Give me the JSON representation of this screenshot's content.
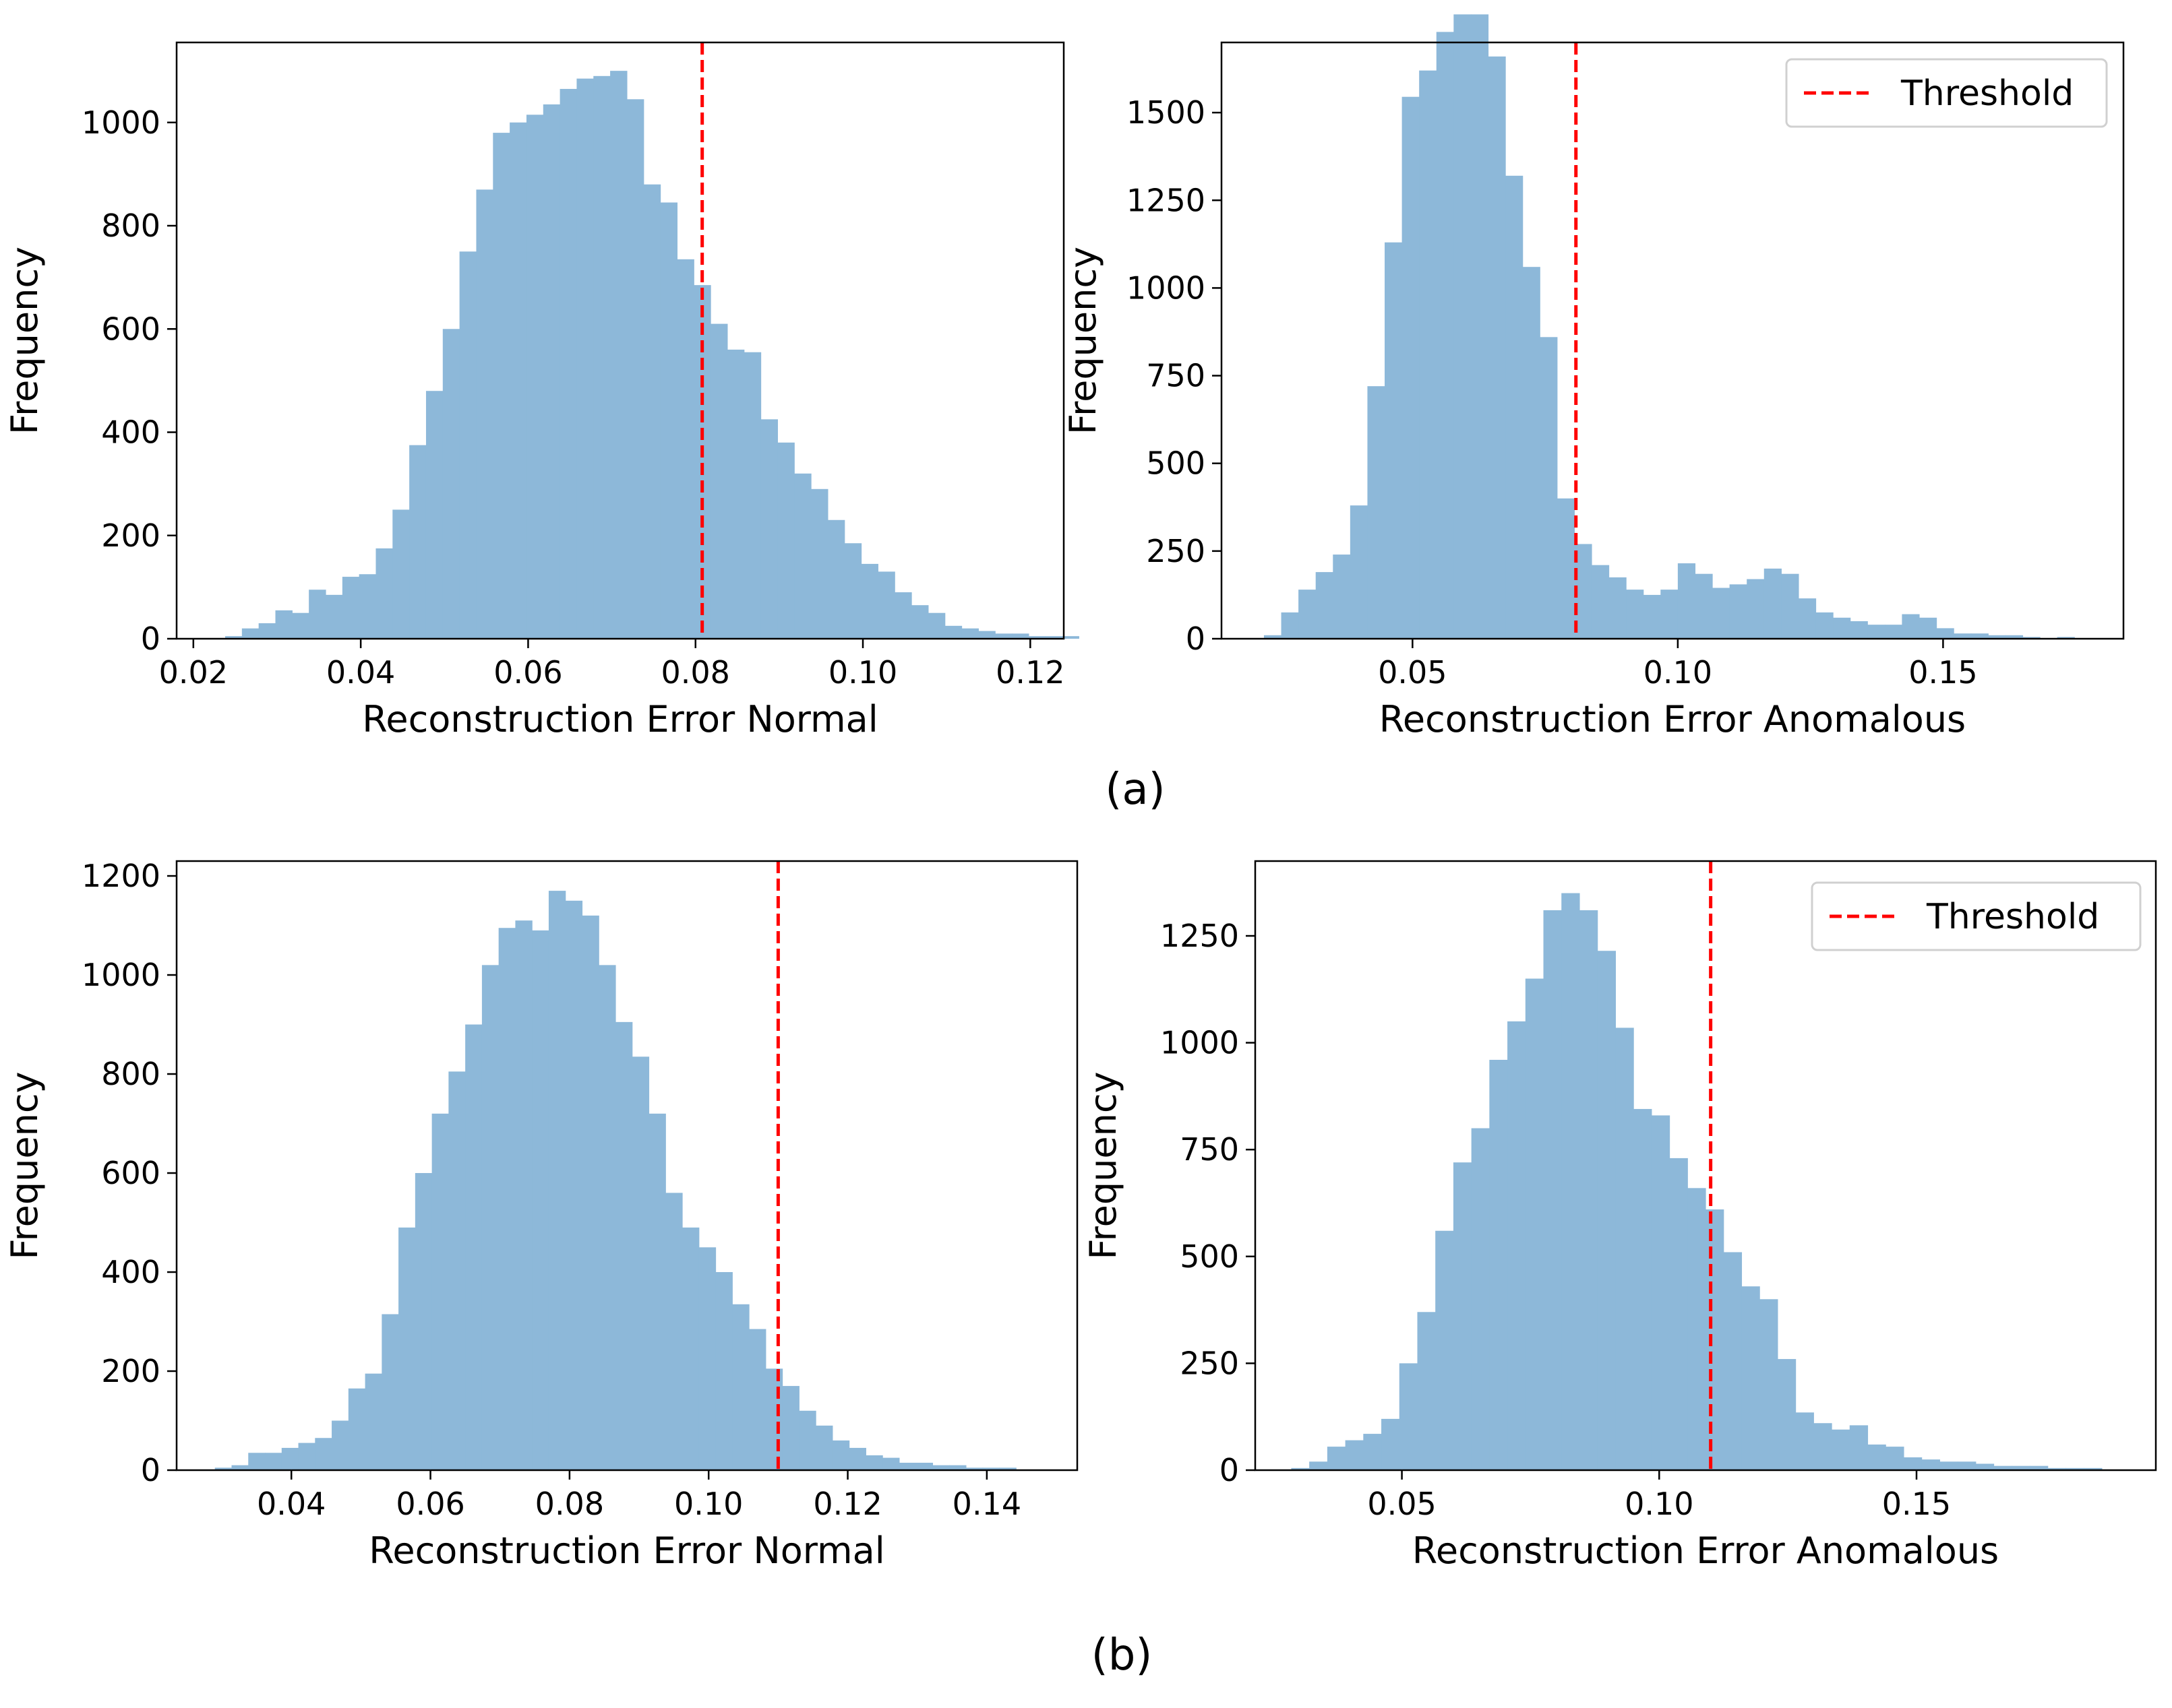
{
  "colors": {
    "bar": "#8db8d9",
    "threshold": "#ff0000",
    "axis": "#000000"
  },
  "captions": {
    "a": "(a)",
    "b": "(b)"
  },
  "chart_data": [
    {
      "type": "bar",
      "panel": "a-left",
      "xlabel": "Reconstruction Error Normal",
      "ylabel": "Frequency",
      "xlim": [
        0.018,
        0.124
      ],
      "ylim": [
        0,
        1155
      ],
      "xticks": [
        0.02,
        0.04,
        0.06,
        0.08,
        0.1,
        0.12
      ],
      "xtick_labels": [
        "0.02",
        "0.04",
        "0.06",
        "0.08",
        "0.10",
        "0.12"
      ],
      "yticks": [
        0,
        200,
        400,
        600,
        800,
        1000
      ],
      "ytick_labels": [
        "0",
        "200",
        "400",
        "600",
        "800",
        "1000"
      ],
      "bin_start": 0.0238,
      "bin_width": 0.002,
      "values": [
        5,
        20,
        30,
        55,
        50,
        95,
        85,
        120,
        125,
        175,
        250,
        375,
        480,
        600,
        750,
        870,
        980,
        1000,
        1015,
        1035,
        1065,
        1085,
        1090,
        1100,
        1045,
        880,
        845,
        735,
        685,
        610,
        560,
        555,
        425,
        380,
        320,
        290,
        230,
        185,
        145,
        130,
        90,
        65,
        50,
        25,
        20,
        15,
        10,
        10,
        5,
        5,
        5,
        0
      ],
      "threshold": 0.0808,
      "legend": null
    },
    {
      "type": "bar",
      "panel": "a-right",
      "xlabel": "Reconstruction Error Anomalous",
      "ylabel": "Frequency",
      "xlim": [
        0.014,
        0.184
      ],
      "ylim": [
        0,
        1700
      ],
      "xticks": [
        0.05,
        0.1,
        0.15
      ],
      "xtick_labels": [
        "0.05",
        "0.10",
        "0.15"
      ],
      "yticks": [
        0,
        250,
        500,
        750,
        1000,
        1250,
        1500
      ],
      "ytick_labels": [
        "0",
        "250",
        "500",
        "750",
        "1000",
        "1250",
        "1500"
      ],
      "bin_start": 0.022,
      "bin_width": 0.00325,
      "values": [
        10,
        75,
        140,
        190,
        240,
        380,
        720,
        1130,
        1545,
        1620,
        1730,
        1780,
        1780,
        1660,
        1320,
        1060,
        860,
        400,
        270,
        210,
        175,
        140,
        125,
        140,
        215,
        185,
        145,
        155,
        170,
        200,
        185,
        115,
        75,
        60,
        50,
        40,
        40,
        70,
        60,
        30,
        15,
        15,
        10,
        10,
        5,
        0,
        5,
        0,
        0,
        0
      ],
      "threshold": 0.0808,
      "legend": {
        "label": "Threshold"
      }
    },
    {
      "type": "bar",
      "panel": "b-left",
      "xlabel": "Reconstruction Error Normal",
      "ylabel": "Frequency",
      "xlim": [
        0.0235,
        0.153
      ],
      "ylim": [
        0,
        1230
      ],
      "xticks": [
        0.04,
        0.06,
        0.08,
        0.1,
        0.12,
        0.14
      ],
      "xtick_labels": [
        "0.04",
        "0.06",
        "0.08",
        "0.10",
        "0.12",
        "0.14"
      ],
      "yticks": [
        0,
        200,
        400,
        600,
        800,
        1000,
        1200
      ],
      "ytick_labels": [
        "0",
        "200",
        "400",
        "600",
        "800",
        "1000",
        "1200"
      ],
      "bin_start": 0.029,
      "bin_width": 0.0024,
      "values": [
        5,
        10,
        35,
        35,
        45,
        55,
        65,
        100,
        165,
        195,
        315,
        490,
        600,
        720,
        805,
        900,
        1020,
        1095,
        1110,
        1090,
        1170,
        1150,
        1120,
        1020,
        905,
        835,
        720,
        560,
        490,
        450,
        400,
        335,
        285,
        205,
        170,
        120,
        90,
        60,
        45,
        30,
        25,
        15,
        15,
        10,
        10,
        5,
        5,
        5,
        0,
        0
      ],
      "threshold": 0.11,
      "legend": null
    },
    {
      "type": "bar",
      "panel": "b-right",
      "xlabel": "Reconstruction Error Anomalous",
      "ylabel": "Frequency",
      "xlim": [
        0.0215,
        0.1965
      ],
      "ylim": [
        0,
        1425
      ],
      "xticks": [
        0.05,
        0.1,
        0.15
      ],
      "xtick_labels": [
        "0.05",
        "0.10",
        "0.15"
      ],
      "yticks": [
        0,
        250,
        500,
        750,
        1000,
        1250
      ],
      "ytick_labels": [
        "0",
        "250",
        "500",
        "750",
        "1000",
        "1250"
      ],
      "bin_start": 0.0285,
      "bin_width": 0.0035,
      "values": [
        5,
        20,
        55,
        70,
        85,
        120,
        250,
        370,
        560,
        720,
        800,
        960,
        1050,
        1150,
        1310,
        1350,
        1310,
        1215,
        1035,
        845,
        830,
        730,
        660,
        610,
        510,
        430,
        400,
        260,
        135,
        110,
        95,
        105,
        60,
        55,
        30,
        25,
        20,
        20,
        15,
        10,
        10,
        10,
        5,
        5,
        5,
        0,
        0,
        0
      ],
      "threshold": 0.11,
      "legend": {
        "label": "Threshold"
      }
    }
  ]
}
